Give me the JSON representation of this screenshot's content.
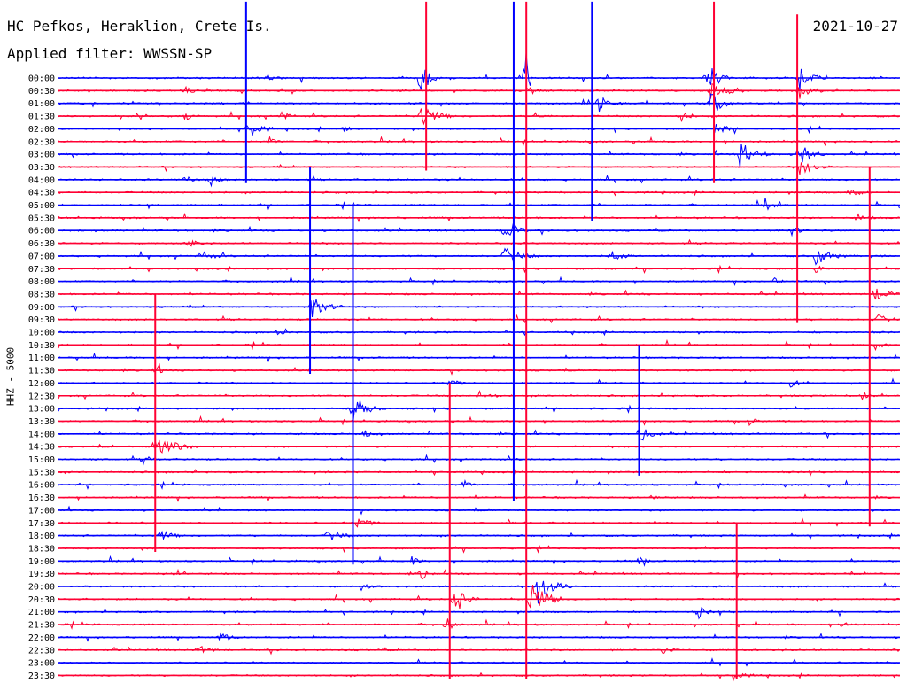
{
  "header": {
    "station": "HC Pefkos, Heraklion, Crete Is.",
    "date": "2021-10-27",
    "filter_label": "Applied filter: WWSSN-SP"
  },
  "chart_data": {
    "type": "line",
    "title": "HC Pefkos, Heraklion, Crete Is.",
    "ylabel": "HHZ - 5000",
    "row_labels": [
      "00:00",
      "00:30",
      "01:00",
      "01:30",
      "02:00",
      "02:30",
      "03:00",
      "03:30",
      "04:00",
      "04:30",
      "05:00",
      "05:30",
      "06:00",
      "06:30",
      "07:00",
      "07:30",
      "08:00",
      "08:30",
      "09:00",
      "09:30",
      "10:00",
      "10:30",
      "11:00",
      "11:30",
      "12:00",
      "12:30",
      "13:00",
      "13:30",
      "14:00",
      "14:30",
      "15:00",
      "15:30",
      "16:00",
      "16:30",
      "17:00",
      "17:30",
      "18:00",
      "18:30",
      "19:00",
      "19:30",
      "20:00",
      "20:30",
      "21:00",
      "21:30",
      "22:00",
      "22:30",
      "23:00",
      "23:30"
    ],
    "colors": [
      "#0000ff",
      "#ff0033"
    ],
    "grid": false,
    "events": [
      {
        "row": 0,
        "x": 0.245,
        "amp": 0.6,
        "dur": 0.03
      },
      {
        "row": 0,
        "x": 0.43,
        "amp": 6.0,
        "dur": 0.02
      },
      {
        "row": 0,
        "x": 0.555,
        "amp": 8.0,
        "dur": 0.01
      },
      {
        "row": 0,
        "x": 0.77,
        "amp": 4.0,
        "dur": 0.03
      },
      {
        "row": 0,
        "x": 0.88,
        "amp": 3.0,
        "dur": 0.03
      },
      {
        "row": 1,
        "x": 0.15,
        "amp": 1.5,
        "dur": 0.02
      },
      {
        "row": 1,
        "x": 0.56,
        "amp": 1.0,
        "dur": 0.02
      },
      {
        "row": 1,
        "x": 0.775,
        "amp": 2.0,
        "dur": 0.04
      },
      {
        "row": 1,
        "x": 0.88,
        "amp": 2.0,
        "dur": 0.03
      },
      {
        "row": 2,
        "x": 0.64,
        "amp": 2.5,
        "dur": 0.03
      },
      {
        "row": 2,
        "x": 0.775,
        "amp": 3.0,
        "dur": 0.03
      },
      {
        "row": 3,
        "x": 0.15,
        "amp": 1.2,
        "dur": 0.02
      },
      {
        "row": 3,
        "x": 0.265,
        "amp": 1.0,
        "dur": 0.02
      },
      {
        "row": 3,
        "x": 0.43,
        "amp": 3.0,
        "dur": 0.04
      },
      {
        "row": 3,
        "x": 0.565,
        "amp": 0.8,
        "dur": 0.02
      },
      {
        "row": 3,
        "x": 0.74,
        "amp": 1.5,
        "dur": 0.02
      },
      {
        "row": 4,
        "x": 0.225,
        "amp": 2.5,
        "dur": 0.03
      },
      {
        "row": 4,
        "x": 0.335,
        "amp": 1.0,
        "dur": 0.02
      },
      {
        "row": 4,
        "x": 0.78,
        "amp": 1.2,
        "dur": 0.03
      },
      {
        "row": 5,
        "x": 0.25,
        "amp": 1.0,
        "dur": 0.02
      },
      {
        "row": 6,
        "x": 0.81,
        "amp": 3.0,
        "dur": 0.04
      },
      {
        "row": 6,
        "x": 0.88,
        "amp": 3.0,
        "dur": 0.03
      },
      {
        "row": 7,
        "x": 0.88,
        "amp": 1.8,
        "dur": 0.04
      },
      {
        "row": 8,
        "x": 0.15,
        "amp": 1.0,
        "dur": 0.02
      },
      {
        "row": 8,
        "x": 0.18,
        "amp": 1.5,
        "dur": 0.02
      },
      {
        "row": 9,
        "x": 0.94,
        "amp": 1.0,
        "dur": 0.03
      },
      {
        "row": 10,
        "x": 0.84,
        "amp": 1.5,
        "dur": 0.02
      },
      {
        "row": 11,
        "x": 0.95,
        "amp": 0.8,
        "dur": 0.02
      },
      {
        "row": 12,
        "x": 0.53,
        "amp": 3.0,
        "dur": 0.03
      },
      {
        "row": 12,
        "x": 0.87,
        "amp": 1.5,
        "dur": 0.02
      },
      {
        "row": 13,
        "x": 0.155,
        "amp": 1.3,
        "dur": 0.02
      },
      {
        "row": 14,
        "x": 0.17,
        "amp": 1.3,
        "dur": 0.03
      },
      {
        "row": 14,
        "x": 0.53,
        "amp": 2.0,
        "dur": 0.04
      },
      {
        "row": 14,
        "x": 0.655,
        "amp": 1.2,
        "dur": 0.03
      },
      {
        "row": 14,
        "x": 0.9,
        "amp": 2.5,
        "dur": 0.04
      },
      {
        "row": 15,
        "x": 0.9,
        "amp": 1.0,
        "dur": 0.02
      },
      {
        "row": 16,
        "x": 0.85,
        "amp": 0.8,
        "dur": 0.02
      },
      {
        "row": 17,
        "x": 0.97,
        "amp": 2.0,
        "dur": 0.03
      },
      {
        "row": 18,
        "x": 0.3,
        "amp": 2.5,
        "dur": 0.04
      },
      {
        "row": 19,
        "x": 0.97,
        "amp": 1.5,
        "dur": 0.03
      },
      {
        "row": 20,
        "x": 0.26,
        "amp": 0.8,
        "dur": 0.02
      },
      {
        "row": 21,
        "x": 0.97,
        "amp": 1.0,
        "dur": 0.02
      },
      {
        "row": 23,
        "x": 0.115,
        "amp": 1.2,
        "dur": 0.02
      },
      {
        "row": 24,
        "x": 0.465,
        "amp": 1.5,
        "dur": 0.02
      },
      {
        "row": 24,
        "x": 0.87,
        "amp": 1.0,
        "dur": 0.02
      },
      {
        "row": 25,
        "x": 0.5,
        "amp": 1.0,
        "dur": 0.03
      },
      {
        "row": 25,
        "x": 0.955,
        "amp": 1.0,
        "dur": 0.02
      },
      {
        "row": 26,
        "x": 0.35,
        "amp": 3.0,
        "dur": 0.04
      },
      {
        "row": 27,
        "x": 0.82,
        "amp": 1.0,
        "dur": 0.02
      },
      {
        "row": 28,
        "x": 0.36,
        "amp": 1.0,
        "dur": 0.03
      },
      {
        "row": 28,
        "x": 0.69,
        "amp": 2.0,
        "dur": 0.03
      },
      {
        "row": 29,
        "x": 0.115,
        "amp": 3.0,
        "dur": 0.05
      },
      {
        "row": 30,
        "x": 0.1,
        "amp": 1.0,
        "dur": 0.02
      },
      {
        "row": 32,
        "x": 0.48,
        "amp": 1.2,
        "dur": 0.02
      },
      {
        "row": 33,
        "x": 0.705,
        "amp": 0.9,
        "dur": 0.02
      },
      {
        "row": 35,
        "x": 0.355,
        "amp": 1.5,
        "dur": 0.03
      },
      {
        "row": 36,
        "x": 0.12,
        "amp": 1.5,
        "dur": 0.03
      },
      {
        "row": 36,
        "x": 0.32,
        "amp": 1.8,
        "dur": 0.03
      },
      {
        "row": 38,
        "x": 0.42,
        "amp": 1.0,
        "dur": 0.02
      },
      {
        "row": 38,
        "x": 0.69,
        "amp": 1.0,
        "dur": 0.02
      },
      {
        "row": 39,
        "x": 0.14,
        "amp": 1.5,
        "dur": 0.02
      },
      {
        "row": 39,
        "x": 0.43,
        "amp": 1.5,
        "dur": 0.02
      },
      {
        "row": 40,
        "x": 0.36,
        "amp": 1.0,
        "dur": 0.02
      },
      {
        "row": 40,
        "x": 0.57,
        "amp": 4.0,
        "dur": 0.04
      },
      {
        "row": 41,
        "x": 0.47,
        "amp": 4.0,
        "dur": 0.03
      },
      {
        "row": 41,
        "x": 0.56,
        "amp": 5.0,
        "dur": 0.04
      },
      {
        "row": 42,
        "x": 0.76,
        "amp": 1.5,
        "dur": 0.02
      },
      {
        "row": 43,
        "x": 0.46,
        "amp": 1.8,
        "dur": 0.02
      },
      {
        "row": 43,
        "x": 0.93,
        "amp": 1.0,
        "dur": 0.02
      },
      {
        "row": 44,
        "x": 0.19,
        "amp": 1.0,
        "dur": 0.03
      },
      {
        "row": 45,
        "x": 0.165,
        "amp": 1.0,
        "dur": 0.03
      },
      {
        "row": 45,
        "x": 0.715,
        "amp": 1.0,
        "dur": 0.03
      },
      {
        "row": 47,
        "x": 0.8,
        "amp": 1.2,
        "dur": 0.03
      }
    ],
    "spikes": [
      {
        "x": 0.437,
        "row0": 0,
        "row1": 7,
        "color": "#ff0033"
      },
      {
        "x": 0.541,
        "row0": 0,
        "row1": 33,
        "color": "#0000ff"
      },
      {
        "x": 0.556,
        "row0": 0,
        "row1": 47,
        "color": "#ff0033"
      },
      {
        "x": 0.779,
        "row0": 0,
        "row1": 8,
        "color": "#ff0033"
      },
      {
        "x": 0.878,
        "row0": 1,
        "row1": 19,
        "color": "#ff0033"
      },
      {
        "x": 0.223,
        "row0": 0,
        "row1": 8,
        "color": "#0000ff"
      },
      {
        "x": 0.634,
        "row0": 0,
        "row1": 11,
        "color": "#0000ff"
      },
      {
        "x": 0.964,
        "row0": 13,
        "row1": 35,
        "color": "#ff0033"
      },
      {
        "x": 0.115,
        "row0": 23,
        "row1": 37,
        "color": "#ff0033"
      },
      {
        "x": 0.35,
        "row0": 16,
        "row1": 38,
        "color": "#0000ff"
      },
      {
        "x": 0.299,
        "row0": 13,
        "row1": 23,
        "color": "#0000ff"
      },
      {
        "x": 0.465,
        "row0": 30,
        "row1": 47,
        "color": "#ff0033"
      },
      {
        "x": 0.806,
        "row0": 41,
        "row1": 47,
        "color": "#ff0033"
      },
      {
        "x": 0.69,
        "row0": 27,
        "row1": 31,
        "color": "#0000ff"
      }
    ]
  }
}
